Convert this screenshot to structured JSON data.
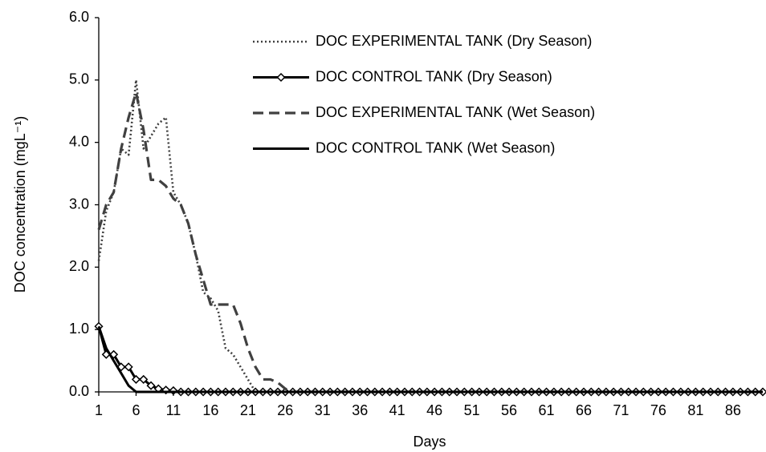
{
  "chart_data": {
    "type": "line",
    "xlabel": "Days",
    "ylabel": "DOC concentration (mgL⁻¹)",
    "x": [
      1,
      2,
      3,
      4,
      5,
      6,
      7,
      8,
      9,
      10,
      11,
      12,
      13,
      14,
      15,
      16,
      17,
      18,
      19,
      20,
      21,
      22,
      23,
      24,
      25,
      26,
      27,
      28,
      29,
      30,
      31,
      32,
      33,
      34,
      35,
      36,
      37,
      38,
      39,
      40,
      41,
      42,
      43,
      44,
      45,
      46,
      47,
      48,
      49,
      50,
      51,
      52,
      53,
      54,
      55,
      56,
      57,
      58,
      59,
      60,
      61,
      62,
      63,
      64,
      65,
      66,
      67,
      68,
      69,
      70,
      71,
      72,
      73,
      74,
      75,
      76,
      77,
      78,
      79,
      80,
      81,
      82,
      83,
      84,
      85,
      86,
      87,
      88,
      89,
      90
    ],
    "xlim": [
      1,
      90
    ],
    "xticks": [
      1,
      6,
      11,
      16,
      21,
      26,
      31,
      36,
      41,
      46,
      51,
      56,
      61,
      66,
      71,
      76,
      81,
      86
    ],
    "ylim": [
      0,
      6
    ],
    "yticks": [
      {
        "value": 0,
        "label": "0.0"
      },
      {
        "value": 1,
        "label": "1.0"
      },
      {
        "value": 2,
        "label": "2.0"
      },
      {
        "value": 3,
        "label": "3.0"
      },
      {
        "value": 4,
        "label": "4.0"
      },
      {
        "value": 5,
        "label": "5.0"
      },
      {
        "value": 6,
        "label": "6.0"
      }
    ],
    "grid": false,
    "legend": "upper right",
    "series": [
      {
        "name": "DOC EXPERIMENTAL TANK (Dry Season)",
        "color": "#404040",
        "style": "dotted",
        "marker": "none",
        "values": [
          2.1,
          2.9,
          3.2,
          3.9,
          3.8,
          5.0,
          3.9,
          4.1,
          4.3,
          4.4,
          3.2,
          3.0,
          2.7,
          2.2,
          1.6,
          1.5,
          1.3,
          0.7,
          0.6,
          0.4,
          0.2,
          0,
          0,
          0,
          0,
          0,
          0,
          0,
          0,
          0,
          0,
          0,
          0,
          0,
          0,
          0,
          0,
          0,
          0,
          0,
          0,
          0,
          0,
          0,
          0,
          0,
          0,
          0,
          0,
          0,
          0,
          0,
          0,
          0,
          0,
          0,
          0,
          0,
          0,
          0,
          0,
          0,
          0,
          0,
          0,
          0,
          0,
          0,
          0,
          0,
          0,
          0,
          0,
          0,
          0,
          0,
          0,
          0,
          0,
          0,
          0,
          0,
          0,
          0,
          0,
          0,
          0,
          0,
          0,
          0
        ]
      },
      {
        "name": "DOC CONTROL TANK (Dry Season)",
        "color": "#000000",
        "style": "solid",
        "marker": "diamond",
        "values": [
          1.05,
          0.6,
          0.6,
          0.4,
          0.4,
          0.2,
          0.2,
          0.1,
          0.05,
          0.03,
          0.02,
          0,
          0,
          0,
          0,
          0,
          0,
          0,
          0,
          0,
          0,
          0,
          0,
          0,
          0,
          0,
          0,
          0,
          0,
          0,
          0,
          0,
          0,
          0,
          0,
          0,
          0,
          0,
          0,
          0,
          0,
          0,
          0,
          0,
          0,
          0,
          0,
          0,
          0,
          0,
          0,
          0,
          0,
          0,
          0,
          0,
          0,
          0,
          0,
          0,
          0,
          0,
          0,
          0,
          0,
          0,
          0,
          0,
          0,
          0,
          0,
          0,
          0,
          0,
          0,
          0,
          0,
          0,
          0,
          0,
          0,
          0,
          0,
          0,
          0,
          0,
          0,
          0,
          0,
          0
        ]
      },
      {
        "name": "DOC EXPERIMENTAL TANK (Wet Season)",
        "color": "#404040",
        "style": "dashed",
        "marker": "none",
        "values": [
          2.6,
          3.0,
          3.2,
          3.9,
          4.4,
          4.8,
          4.2,
          3.4,
          3.4,
          3.3,
          3.1,
          3.0,
          2.7,
          2.2,
          1.8,
          1.4,
          1.4,
          1.4,
          1.4,
          1.1,
          0.7,
          0.4,
          0.2,
          0.2,
          0.15,
          0.05,
          0,
          0,
          0,
          0,
          0,
          0,
          0,
          0,
          0,
          0,
          0,
          0,
          0,
          0,
          0,
          0,
          0,
          0,
          0,
          0,
          0,
          0,
          0,
          0,
          0,
          0,
          0,
          0,
          0,
          0,
          0,
          0,
          0,
          0,
          0,
          0,
          0,
          0,
          0,
          0,
          0,
          0,
          0,
          0,
          0,
          0,
          0,
          0,
          0,
          0,
          0,
          0,
          0,
          0,
          0,
          0,
          0,
          0,
          0,
          0,
          0,
          0,
          0,
          0
        ]
      },
      {
        "name": "DOC CONTROL TANK (Wet Season)",
        "color": "#000000",
        "style": "solid",
        "marker": "none",
        "values": [
          1.05,
          0.7,
          0.5,
          0.3,
          0.1,
          0,
          0,
          0,
          0,
          0,
          0,
          0,
          0,
          0,
          0,
          0,
          0,
          0,
          0,
          0,
          0,
          0,
          0,
          0,
          0,
          0,
          0,
          0,
          0,
          0,
          0,
          0,
          0,
          0,
          0,
          0,
          0,
          0,
          0,
          0,
          0,
          0,
          0,
          0,
          0,
          0,
          0,
          0,
          0,
          0,
          0,
          0,
          0,
          0,
          0,
          0,
          0,
          0,
          0,
          0,
          0,
          0,
          0,
          0,
          0,
          0,
          0,
          0,
          0,
          0,
          0,
          0,
          0,
          0,
          0,
          0,
          0,
          0,
          0,
          0,
          0,
          0,
          0,
          0,
          0,
          0,
          0,
          0,
          0,
          0
        ]
      }
    ]
  }
}
